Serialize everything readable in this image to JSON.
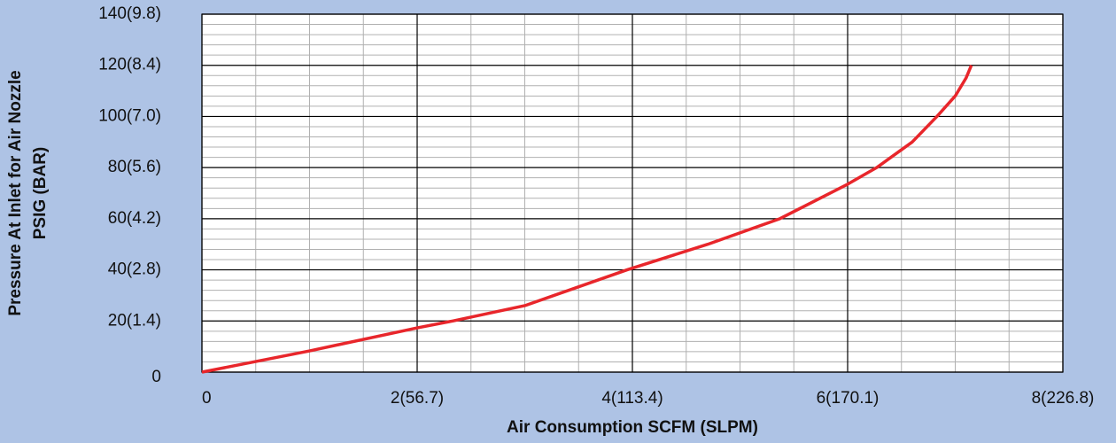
{
  "chart_data": {
    "type": "line",
    "xlabel": "Air Consumption SCFM (SLPM)",
    "ylabel": [
      "Pressure At Inlet for Air Nozzle",
      "PSIG (BAR)"
    ],
    "series": [
      {
        "color": "#e8262b",
        "x": [
          0,
          1,
          2,
          2.33,
          3,
          3.95,
          4.7,
          5.37,
          6,
          6.27,
          6.6,
          6.83,
          7.0,
          7.1,
          7.15
        ],
        "values": [
          0,
          8.3,
          17.3,
          20,
          26,
          40,
          50,
          60,
          73.5,
          80,
          90,
          100,
          108,
          115,
          120
        ]
      }
    ],
    "xlim": [
      0,
      8
    ],
    "ylim": [
      0,
      140
    ],
    "xticks": [
      0,
      {
        "value": 2,
        "label": "2(56.7)"
      },
      {
        "value": 4,
        "label": "4(113.4)"
      },
      {
        "value": 6,
        "label": "6(170.1)"
      },
      {
        "value": 8,
        "label": "8(226.8)"
      }
    ],
    "yticks": [
      0,
      {
        "value": 20,
        "label": "20(1.4)"
      },
      {
        "value": 40,
        "label": "40(2.8)"
      },
      {
        "value": 60,
        "label": "60(4.2)"
      },
      {
        "value": 80,
        "label": "80(5.6)"
      },
      {
        "value": 100,
        "label": "100(7.0)"
      },
      {
        "value": 120,
        "label": "120(8.4)"
      },
      {
        "value": 140,
        "label": "140(9.8)"
      }
    ],
    "minor_xticks": [
      0.5,
      1,
      1.5,
      2.5,
      3,
      3.5,
      4.5,
      5,
      5.5,
      6.5,
      7,
      7.5
    ],
    "minor_yticks": [
      4,
      8,
      12,
      16,
      24,
      28,
      32,
      36,
      44,
      48,
      52,
      56,
      64,
      68,
      72,
      76,
      84,
      88,
      92,
      96,
      104,
      108,
      112,
      116,
      124,
      128,
      132,
      136
    ],
    "grid": true
  }
}
